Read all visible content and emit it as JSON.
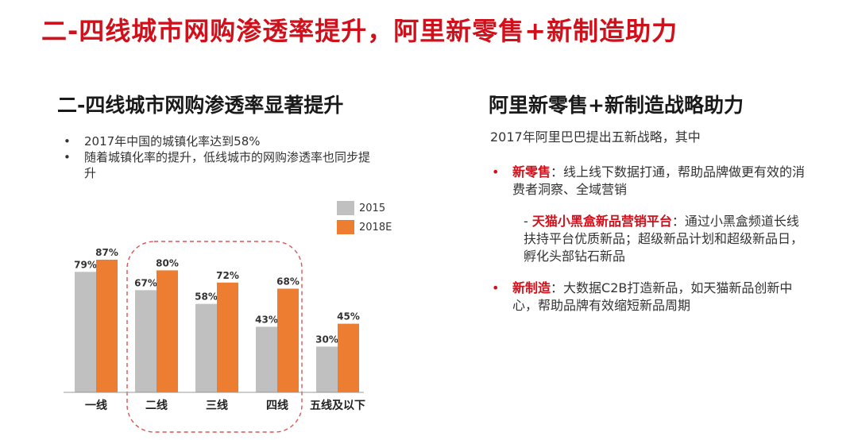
{
  "title": "二-四线城市网购渗透率提升，阿里新零售+新制造助力",
  "left": {
    "title": "二-四线城市网购渗透率显著提升",
    "bullets": [
      "2017年中国的城镇化率达到58%",
      "随着城镇化率的提升，低线城市的网购渗透率也同步提升"
    ],
    "bullet_symbol": "•"
  },
  "chart_data": {
    "type": "bar",
    "categories": [
      "一线",
      "二线",
      "三线",
      "四线",
      "五线及以下"
    ],
    "series": [
      {
        "name": "2015",
        "values": [
          79,
          67,
          58,
          43,
          30
        ],
        "labels": [
          "79%",
          "67%",
          "58%",
          "43%",
          "30%"
        ],
        "color": "#c0c0c0"
      },
      {
        "name": "2018E",
        "values": [
          87,
          80,
          72,
          68,
          45
        ],
        "labels": [
          "87%",
          "80%",
          "72%",
          "68%",
          "45%"
        ],
        "color": "#ed7d31"
      }
    ],
    "ylim": [
      0,
      100
    ],
    "legend_position": "top-right",
    "highlight_categories": [
      "二线",
      "三线",
      "四线"
    ],
    "highlight_style": "dashed rounded outline",
    "highlight_color": "#d95555"
  },
  "right": {
    "title": "阿里新零售+新制造战略助力",
    "intro": "2017年阿里巴巴提出五新战略，其中",
    "bullet_symbol": "•",
    "item1_head": "新零售",
    "item1_text": "：线上线下数据打通，帮助品牌做更有效的消费者洞察、全域营销",
    "sub_prefix": "- ",
    "sub_head": "天猫小黑盒新品营销平台",
    "sub_text": "：通过小黑盒频道长线扶持平台优质新品；超级新品计划和超级新品日，孵化头部钻石新品",
    "item2_head": "新制造",
    "item2_text": "：大数据C2B打造新品，如天猫新品创新中心，帮助品牌有效缩短新品周期"
  },
  "colors": {
    "title_red": "#d0101b",
    "bar_gray": "#c0c0c0",
    "bar_orange": "#ed7d31"
  }
}
